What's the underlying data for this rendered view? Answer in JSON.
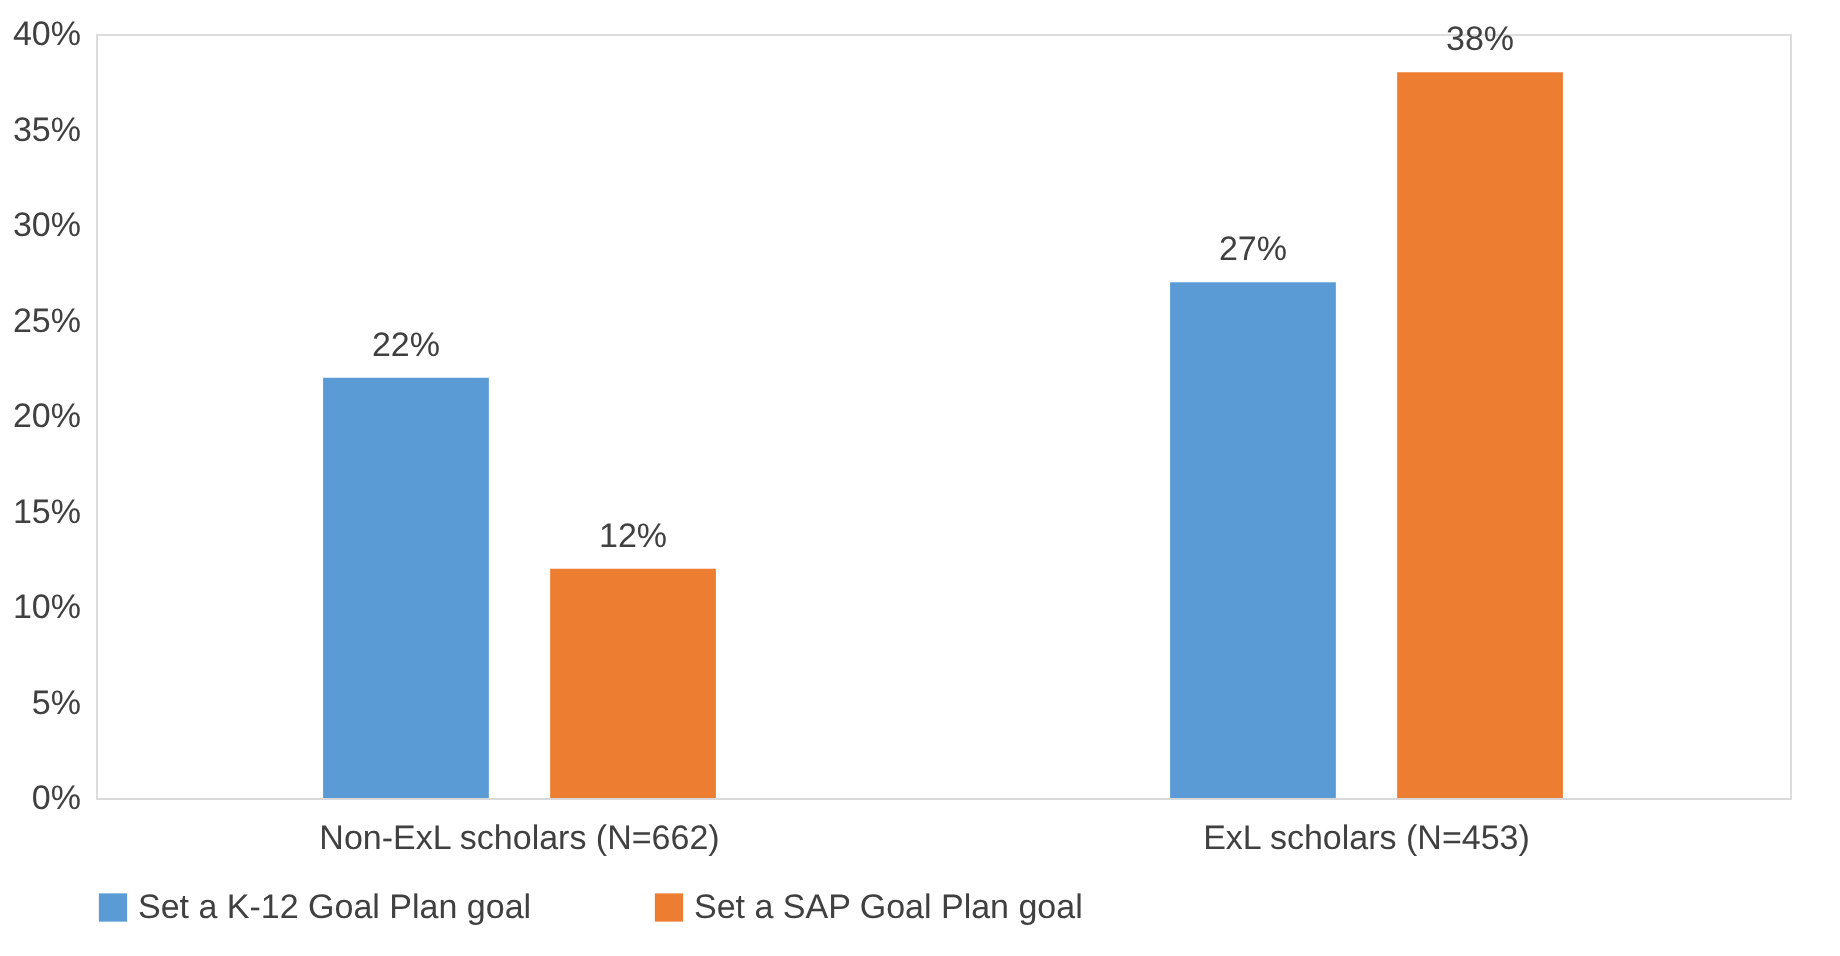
{
  "chart_data": {
    "type": "bar",
    "categories": [
      "Non-ExL scholars (N=662)",
      "ExL scholars (N=453)"
    ],
    "series": [
      {
        "name": "Set a K-12 Goal Plan goal",
        "color": "#5b9bd5",
        "values": [
          22,
          27
        ],
        "value_labels": [
          "22%",
          "27%"
        ]
      },
      {
        "name": "Set a SAP Goal Plan goal",
        "color": "#ed7d31",
        "values": [
          12,
          38
        ],
        "value_labels": [
          "12%",
          "38%"
        ]
      }
    ],
    "ylim": [
      0,
      40
    ],
    "yticks": [
      {
        "value": 0,
        "label": "0%"
      },
      {
        "value": 5,
        "label": "5%"
      },
      {
        "value": 10,
        "label": "10%"
      },
      {
        "value": 15,
        "label": "15%"
      },
      {
        "value": 20,
        "label": "20%"
      },
      {
        "value": 25,
        "label": "25%"
      },
      {
        "value": 30,
        "label": "30%"
      },
      {
        "value": 35,
        "label": "35%"
      },
      {
        "value": 40,
        "label": "40%"
      }
    ],
    "grid": false,
    "legend": "bottom"
  }
}
